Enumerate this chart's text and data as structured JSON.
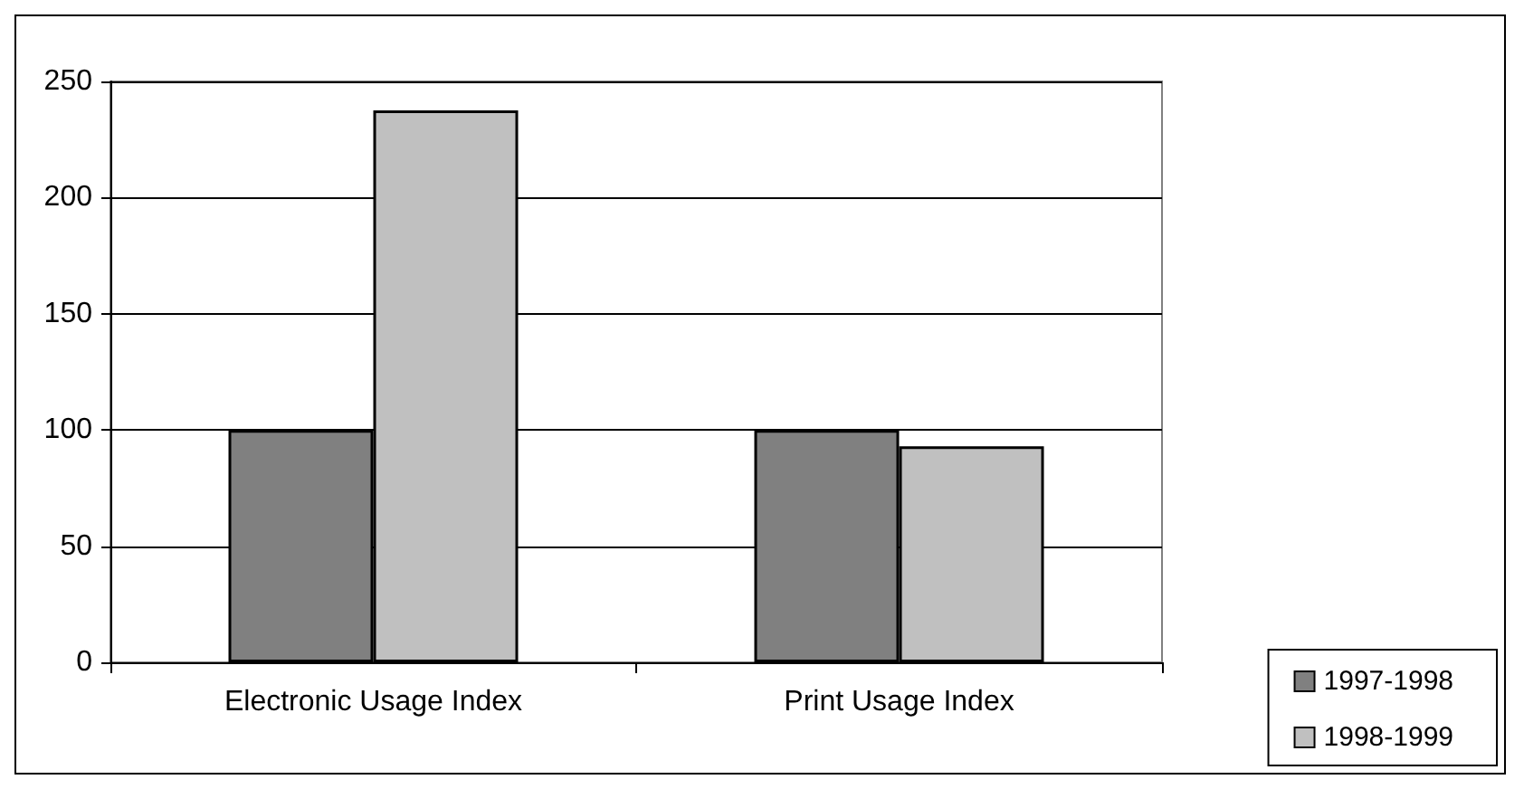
{
  "chart_data": {
    "type": "bar",
    "categories": [
      "Electronic Usage Index",
      "Print Usage Index"
    ],
    "series": [
      {
        "name": "1997-1998",
        "color": "#808080",
        "values": [
          100,
          100
        ]
      },
      {
        "name": "1998-1999",
        "color": "#c0c0c0",
        "values": [
          237.5,
          93
        ]
      }
    ],
    "ylim": [
      0,
      250
    ],
    "yticks": [
      0,
      50,
      100,
      150,
      200,
      250
    ],
    "grid": "y",
    "legend": "bottom right"
  }
}
